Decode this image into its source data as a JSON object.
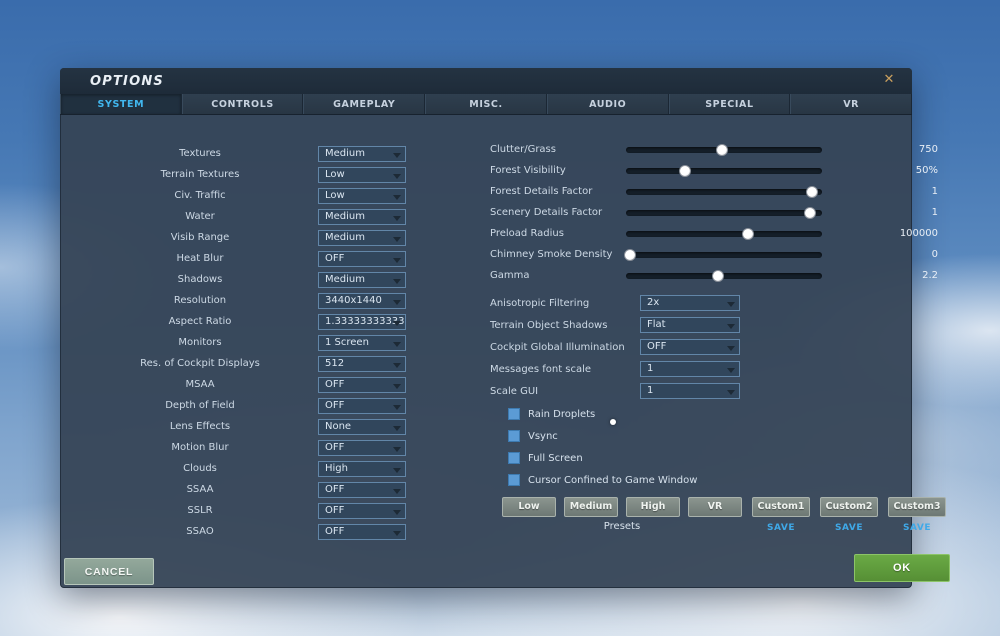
{
  "window": {
    "title": "OPTIONS",
    "close_label": "✕"
  },
  "tabs": [
    {
      "label": "SYSTEM",
      "active": true
    },
    {
      "label": "CONTROLS",
      "active": false
    },
    {
      "label": "GAMEPLAY",
      "active": false
    },
    {
      "label": "MISC.",
      "active": false
    },
    {
      "label": "AUDIO",
      "active": false
    },
    {
      "label": "SPECIAL",
      "active": false
    },
    {
      "label": "VR",
      "active": false
    }
  ],
  "left_settings": [
    {
      "label": "Textures",
      "value": "Medium"
    },
    {
      "label": "Terrain Textures",
      "value": "Low"
    },
    {
      "label": "Civ. Traffic",
      "value": "Low"
    },
    {
      "label": "Water",
      "value": "Medium"
    },
    {
      "label": "Visib Range",
      "value": "Medium"
    },
    {
      "label": "Heat Blur",
      "value": "OFF"
    },
    {
      "label": "Shadows",
      "value": "Medium"
    },
    {
      "label": "Resolution",
      "value": "3440x1440"
    },
    {
      "label": "Aspect Ratio",
      "value": "1.3333333333333"
    },
    {
      "label": "Monitors",
      "value": "1 Screen"
    },
    {
      "label": "Res. of Cockpit Displays",
      "value": "512"
    },
    {
      "label": "MSAA",
      "value": "OFF"
    },
    {
      "label": "Depth of Field",
      "value": "OFF"
    },
    {
      "label": "Lens Effects",
      "value": "None"
    },
    {
      "label": "Motion Blur",
      "value": "OFF"
    },
    {
      "label": "Clouds",
      "value": "High"
    },
    {
      "label": "SSAA",
      "value": "OFF"
    },
    {
      "label": "SSLR",
      "value": "OFF"
    },
    {
      "label": "SSAO",
      "value": "OFF"
    }
  ],
  "sliders": [
    {
      "label": "Clutter/Grass",
      "value": "750",
      "fraction": 0.49
    },
    {
      "label": "Forest Visibility",
      "value": "50%",
      "fraction": 0.3
    },
    {
      "label": "Forest Details Factor",
      "value": "1",
      "fraction": 0.95
    },
    {
      "label": "Scenery Details Factor",
      "value": "1",
      "fraction": 0.94
    },
    {
      "label": "Preload Radius",
      "value": "100000",
      "fraction": 0.62
    },
    {
      "label": "Chimney Smoke Density",
      "value": "0",
      "fraction": 0.02
    },
    {
      "label": "Gamma",
      "value": "2.2",
      "fraction": 0.47
    }
  ],
  "right_dropdowns": [
    {
      "label": "Anisotropic Filtering",
      "value": "2x"
    },
    {
      "label": "Terrain Object Shadows",
      "value": "Flat"
    },
    {
      "label": "Cockpit Global Illumination",
      "value": "OFF"
    },
    {
      "label": "Messages font scale",
      "value": "1"
    },
    {
      "label": "Scale GUI",
      "value": "1"
    }
  ],
  "checkboxes": [
    {
      "label": "Rain Droplets",
      "checked": false
    },
    {
      "label": "Vsync",
      "checked": false
    },
    {
      "label": "Full Screen",
      "checked": false
    },
    {
      "label": "Cursor Confined to Game Window",
      "checked": false
    }
  ],
  "presets": {
    "group_label": "Presets",
    "buttons": [
      "Low",
      "Medium",
      "High",
      "VR"
    ],
    "custom": [
      {
        "label": "Custom1",
        "save_label": "SAVE"
      },
      {
        "label": "Custom2",
        "save_label": "SAVE"
      },
      {
        "label": "Custom3",
        "save_label": "SAVE"
      }
    ]
  },
  "footer": {
    "cancel_label": "CANCEL",
    "ok_label": "OK"
  },
  "colors": {
    "accent": "#41b7ef",
    "ok_green": "#5f9e3e",
    "save_blue": "#3fa9e8",
    "checkbox_blue": "#5b9bd5"
  }
}
